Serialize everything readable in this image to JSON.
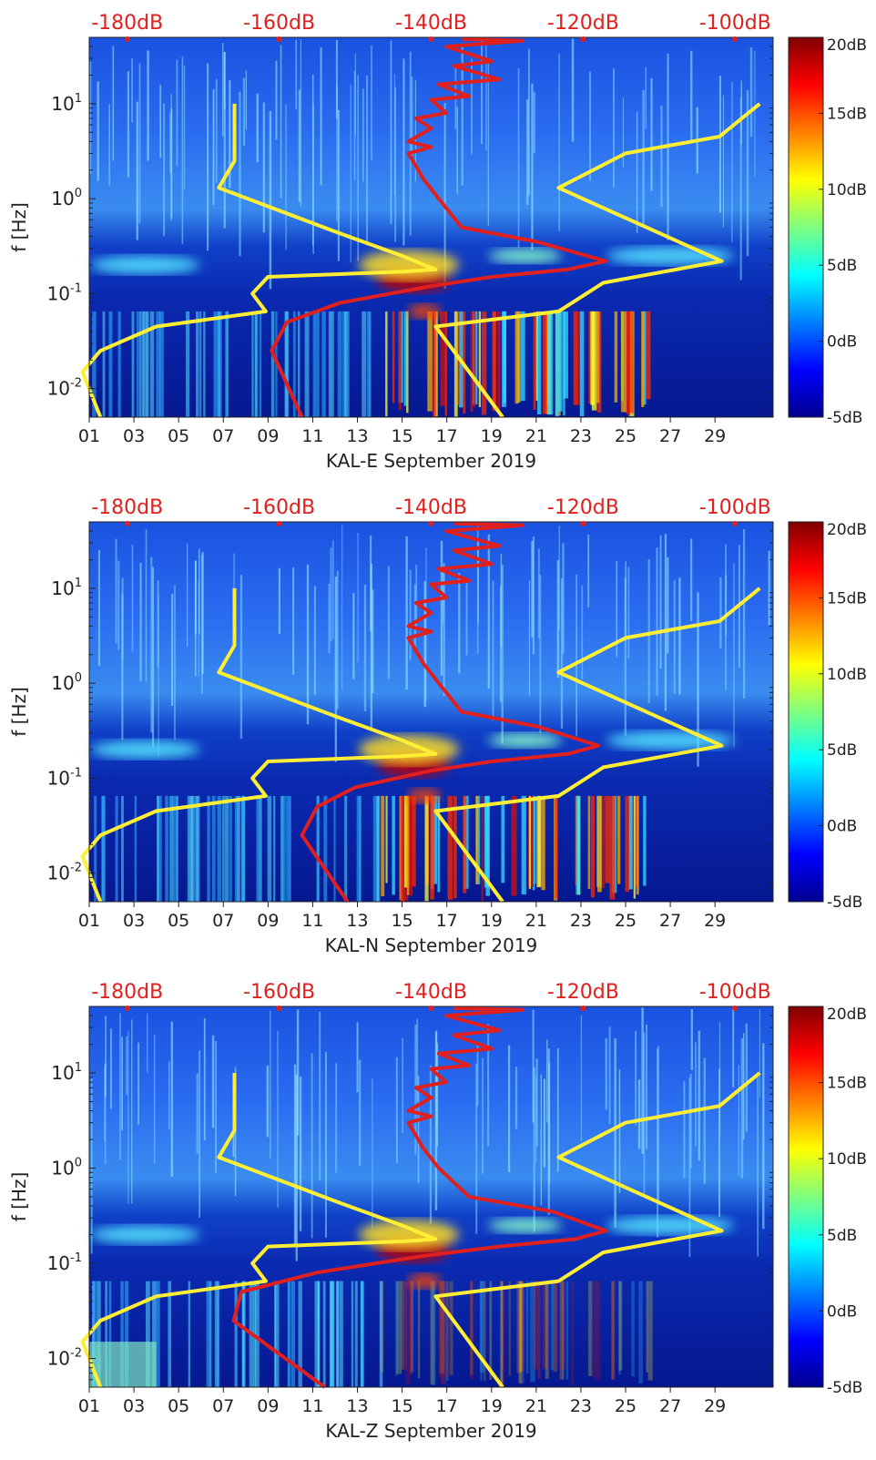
{
  "chart_data": [
    {
      "type": "heatmap",
      "xlabel": "KAL-E September 2019",
      "ylabel": "f [Hz]",
      "x_ticks": [
        "01",
        "03",
        "05",
        "07",
        "09",
        "11",
        "13",
        "15",
        "17",
        "19",
        "21",
        "23",
        "25",
        "27",
        "29"
      ],
      "y_ticks": [
        {
          "exp": "-2",
          "value": 0.01
        },
        {
          "exp": "-1",
          "value": 0.1
        },
        {
          "exp": "0",
          "value": 1
        },
        {
          "exp": "1",
          "value": 10
        }
      ],
      "ylim": [
        0.005,
        50
      ],
      "top_axis_ticks": [
        "-180dB",
        "-160dB",
        "-140dB",
        "-120dB",
        "-100dB"
      ],
      "top_axis_range_db": [
        -185,
        -95
      ],
      "colorbar": {
        "ticks": [
          "20dB",
          "15dB",
          "10dB",
          "5dB",
          "0dB",
          "-5dB"
        ],
        "range_db": [
          -5,
          20
        ]
      },
      "series": [
        {
          "color": "#ffee33",
          "x_day": [
            7.5,
            7.5,
            6.8,
            12.0,
            15.0,
            16.0,
            16.5,
            15.0,
            9.0,
            8.3,
            8.9,
            4.0,
            1.5,
            0.7,
            1.5
          ],
          "y_hz": [
            10,
            2.5,
            1.3,
            0.45,
            0.25,
            0.2,
            0.18,
            0.17,
            0.15,
            0.1,
            0.065,
            0.045,
            0.025,
            0.015,
            0.005
          ]
        },
        {
          "color": "#ffee33",
          "x_day": [
            31.0,
            29.2,
            25.0,
            22.0,
            29.3,
            24.0,
            22.0,
            16.5,
            19.5
          ],
          "y_hz": [
            10,
            4.5,
            3.0,
            1.3,
            0.22,
            0.13,
            0.065,
            0.045,
            0.005
          ]
        },
        {
          "color": "#e0201e",
          "x_db": [
            -136,
            -128,
            -138,
            -132,
            -137,
            -131,
            -139,
            -135,
            -140,
            -138,
            -142,
            -140,
            -143,
            -140,
            -143,
            -141,
            -139,
            -136,
            -126,
            -117,
            -122,
            -132,
            -140,
            -152,
            -159,
            -161,
            -157
          ],
          "y_hz": [
            48,
            46,
            40,
            28,
            25,
            18,
            16,
            12,
            11,
            8,
            7,
            5.5,
            4,
            3.5,
            3.0,
            1.6,
            1.0,
            0.5,
            0.35,
            0.22,
            0.18,
            0.15,
            0.12,
            0.08,
            0.05,
            0.025,
            0.005
          ]
        }
      ]
    },
    {
      "type": "heatmap",
      "xlabel": "KAL-N September 2019",
      "ylabel": "f [Hz]",
      "x_ticks": [
        "01",
        "03",
        "05",
        "07",
        "09",
        "11",
        "13",
        "15",
        "17",
        "19",
        "21",
        "23",
        "25",
        "27",
        "29"
      ],
      "y_ticks": [
        {
          "exp": "-2",
          "value": 0.01
        },
        {
          "exp": "-1",
          "value": 0.1
        },
        {
          "exp": "0",
          "value": 1
        },
        {
          "exp": "1",
          "value": 10
        }
      ],
      "ylim": [
        0.005,
        50
      ],
      "top_axis_ticks": [
        "-180dB",
        "-160dB",
        "-140dB",
        "-120dB",
        "-100dB"
      ],
      "top_axis_range_db": [
        -185,
        -95
      ],
      "colorbar": {
        "ticks": [
          "20dB",
          "15dB",
          "10dB",
          "5dB",
          "0dB",
          "-5dB"
        ],
        "range_db": [
          -5,
          20
        ]
      },
      "series": [
        {
          "color": "#ffee33",
          "x_day": [
            7.5,
            7.5,
            6.8,
            12.0,
            15.0,
            16.0,
            16.5,
            15.0,
            9.0,
            8.3,
            8.9,
            4.0,
            1.5,
            0.7,
            1.5
          ],
          "y_hz": [
            10,
            2.5,
            1.3,
            0.45,
            0.25,
            0.2,
            0.18,
            0.17,
            0.15,
            0.1,
            0.065,
            0.045,
            0.025,
            0.015,
            0.005
          ]
        },
        {
          "color": "#ffee33",
          "x_day": [
            31.0,
            29.2,
            25.0,
            22.0,
            29.3,
            24.0,
            22.0,
            16.5,
            19.5
          ],
          "y_hz": [
            10,
            4.5,
            3.0,
            1.3,
            0.22,
            0.13,
            0.065,
            0.045,
            0.005
          ]
        },
        {
          "color": "#e0201e",
          "x_db": [
            -137,
            -128,
            -138,
            -131,
            -137,
            -132,
            -139,
            -135,
            -140,
            -138,
            -142,
            -140,
            -143,
            -140,
            -143,
            -141,
            -139,
            -136,
            -126,
            -118,
            -122,
            -132,
            -140,
            -150,
            -155,
            -157,
            -151
          ],
          "y_hz": [
            48,
            46,
            40,
            28,
            25,
            18,
            16,
            12,
            11,
            8,
            7,
            5.5,
            4,
            3.5,
            3.0,
            1.6,
            1.0,
            0.5,
            0.35,
            0.22,
            0.18,
            0.15,
            0.12,
            0.08,
            0.05,
            0.025,
            0.005
          ]
        }
      ]
    },
    {
      "type": "heatmap",
      "xlabel": "KAL-Z September 2019",
      "ylabel": "f [Hz]",
      "x_ticks": [
        "01",
        "03",
        "05",
        "07",
        "09",
        "11",
        "13",
        "15",
        "17",
        "19",
        "21",
        "23",
        "25",
        "27",
        "29"
      ],
      "y_ticks": [
        {
          "exp": "-2",
          "value": 0.01
        },
        {
          "exp": "-1",
          "value": 0.1
        },
        {
          "exp": "0",
          "value": 1
        },
        {
          "exp": "1",
          "value": 10
        }
      ],
      "ylim": [
        0.005,
        50
      ],
      "top_axis_ticks": [
        "-180dB",
        "-160dB",
        "-140dB",
        "-120dB",
        "-100dB"
      ],
      "top_axis_range_db": [
        -185,
        -95
      ],
      "colorbar": {
        "ticks": [
          "20dB",
          "15dB",
          "10dB",
          "5dB",
          "0dB",
          "-5dB"
        ],
        "range_db": [
          -5,
          20
        ]
      },
      "series": [
        {
          "color": "#ffee33",
          "x_day": [
            7.5,
            7.5,
            6.8,
            12.0,
            15.0,
            16.0,
            16.5,
            15.0,
            9.0,
            8.3,
            8.9,
            4.0,
            1.5,
            0.7,
            1.5
          ],
          "y_hz": [
            10,
            2.5,
            1.3,
            0.45,
            0.25,
            0.2,
            0.18,
            0.17,
            0.15,
            0.1,
            0.065,
            0.045,
            0.025,
            0.015,
            0.005
          ]
        },
        {
          "color": "#ffee33",
          "x_day": [
            31.0,
            29.2,
            25.0,
            22.0,
            29.3,
            24.0,
            22.0,
            16.5,
            19.5
          ],
          "y_hz": [
            10,
            4.5,
            3.0,
            1.3,
            0.22,
            0.13,
            0.065,
            0.045,
            0.005
          ]
        },
        {
          "color": "#e0201e",
          "x_db": [
            -137,
            -128,
            -138,
            -131,
            -137,
            -132,
            -139,
            -135,
            -140,
            -138,
            -142,
            -140,
            -143,
            -140,
            -143,
            -141,
            -139,
            -135,
            -124,
            -117,
            -121,
            -131,
            -141,
            -155,
            -165,
            -166,
            -154
          ],
          "y_hz": [
            48,
            46,
            40,
            28,
            25,
            18,
            16,
            12,
            11,
            8,
            7,
            5.5,
            4,
            3.5,
            3.0,
            1.6,
            1.0,
            0.5,
            0.35,
            0.22,
            0.18,
            0.15,
            0.12,
            0.08,
            0.05,
            0.025,
            0.005
          ]
        }
      ]
    }
  ]
}
